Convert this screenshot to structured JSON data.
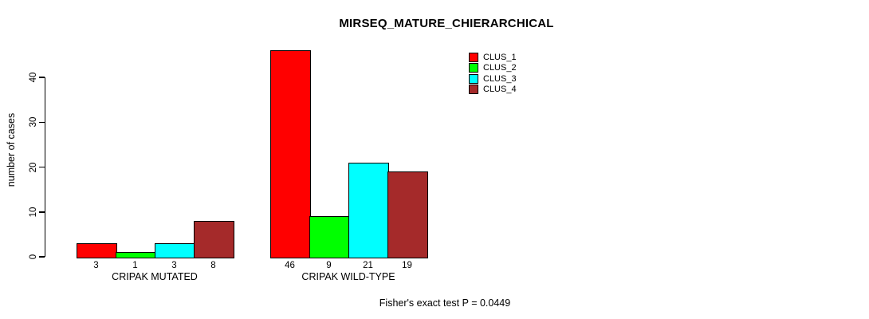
{
  "chart_data": {
    "type": "bar",
    "title": "MIRSEQ_MATURE_CHIERARCHICAL",
    "ylabel": "number of cases",
    "xlabel": "",
    "categories": [
      "CRIPAK MUTATED",
      "CRIPAK WILD-TYPE"
    ],
    "series": [
      {
        "name": "CLUS_1",
        "color": "#ff0000",
        "values": [
          3,
          46
        ]
      },
      {
        "name": "CLUS_2",
        "color": "#00ff00",
        "values": [
          1,
          9
        ]
      },
      {
        "name": "CLUS_3",
        "color": "#00ffff",
        "values": [
          3,
          21
        ]
      },
      {
        "name": "CLUS_4",
        "color": "#a52a2a",
        "values": [
          8,
          19
        ]
      }
    ],
    "bar_value_labels": [
      [
        "3",
        "1",
        "3",
        "8"
      ],
      [
        "46",
        "9",
        "21",
        "19"
      ]
    ],
    "yticks": [
      0,
      10,
      20,
      30,
      40
    ],
    "ylim": [
      0,
      46
    ],
    "grid": false,
    "legend_position": "top-right",
    "legend_entries": [
      "CLUS_1",
      "CLUS_2",
      "CLUS_3",
      "CLUS_4"
    ],
    "footnote": "Fisher's exact test P = 0.0449",
    "colors": {
      "axis": "#000000",
      "bar_border": "#000000",
      "background": "#ffffff",
      "text": "#000000"
    }
  }
}
